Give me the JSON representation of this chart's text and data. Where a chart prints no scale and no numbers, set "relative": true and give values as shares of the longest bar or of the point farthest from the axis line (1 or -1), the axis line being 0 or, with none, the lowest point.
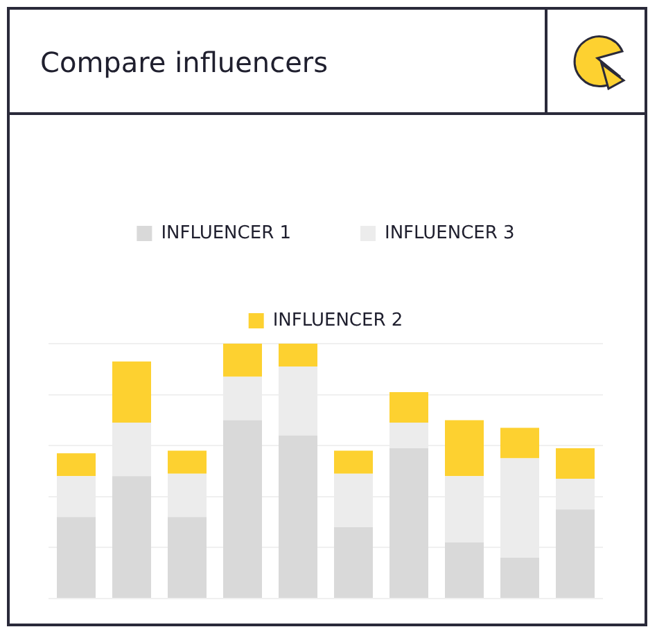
{
  "chart_data": {
    "type": "bar",
    "title": "Compare influencers",
    "stacked": true,
    "relative": true,
    "grid": "y",
    "legend": "top",
    "categories": [
      null,
      null,
      null,
      null,
      null,
      null,
      null,
      null,
      null,
      null
    ],
    "series": [
      {
        "name": "INFLUENCER 1",
        "color": "#d9d9d9",
        "values": [
          0.32,
          0.48,
          0.32,
          0.7,
          0.64,
          0.28,
          0.59,
          0.22,
          0.16,
          0.35
        ]
      },
      {
        "name": "INFLUENCER 3",
        "color": "#ececec",
        "values": [
          0.16,
          0.21,
          0.17,
          0.17,
          0.27,
          0.21,
          0.1,
          0.26,
          0.39,
          0.12
        ]
      },
      {
        "name": "INFLUENCER 2",
        "color": "#fdd130",
        "values": [
          0.09,
          0.24,
          0.09,
          0.13,
          0.09,
          0.09,
          0.12,
          0.22,
          0.12,
          0.12
        ]
      }
    ]
  }
}
